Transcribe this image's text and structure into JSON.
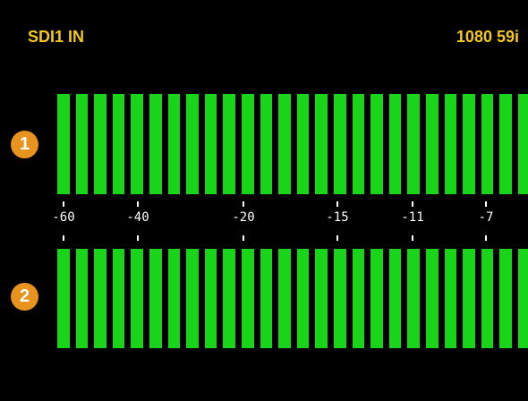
{
  "header": {
    "input_label": "SDI1 IN",
    "video_format": "1080 59i"
  },
  "colors": {
    "background": "#000000",
    "header_text": "#f2c81a",
    "meter_segment": "#19d519",
    "channel_badge": "#e8931d",
    "scale": "#ffffff"
  },
  "channels": [
    {
      "number": "1",
      "segments_lit": 27
    },
    {
      "number": "2",
      "segments_lit": 27
    }
  ],
  "scale": {
    "labels": [
      "-60",
      "-40",
      "-20",
      "-15",
      "-11",
      "-7"
    ]
  }
}
